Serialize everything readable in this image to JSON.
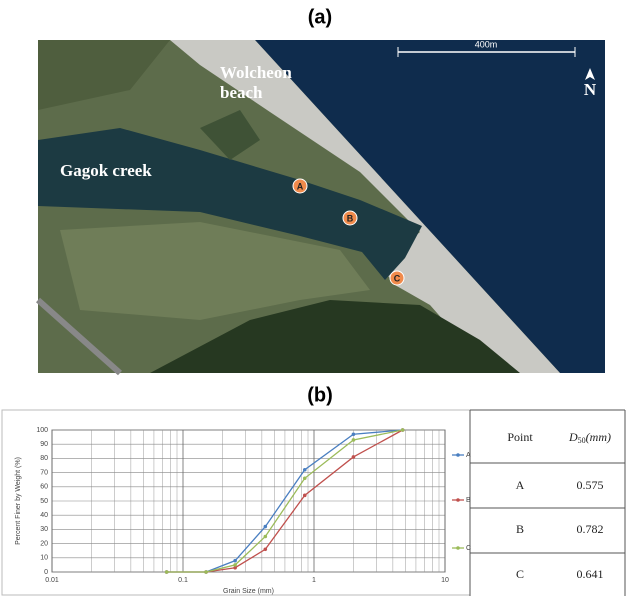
{
  "figure": {
    "panel_a_label": "(a)",
    "panel_b_label": "(b)"
  },
  "map": {
    "beach": [
      "Wolcheon",
      "beach"
    ],
    "creek": "Gagok creek",
    "scale_bar": "400m",
    "north": "N",
    "points": [
      "A",
      "B",
      "C"
    ]
  },
  "chart_data": {
    "type": "line",
    "x_label": "Grain Size (mm)",
    "y_label": "Percent Finer by Weight (%)",
    "x": [
      0.075,
      0.15,
      0.25,
      0.425,
      0.85,
      2,
      4.75
    ],
    "series": [
      {
        "name": "A",
        "color": "#4a7fc1",
        "values": [
          0,
          0,
          8,
          32,
          72,
          97,
          100
        ]
      },
      {
        "name": "B",
        "color": "#c0504d",
        "values": [
          0,
          0,
          3,
          16,
          54,
          81,
          100
        ]
      },
      {
        "name": "C",
        "color": "#9bbb59",
        "values": [
          0,
          0,
          5,
          25,
          66,
          93,
          100
        ]
      }
    ],
    "xlim": [
      0.01,
      10
    ],
    "ylim": [
      0,
      100
    ],
    "xticks": [
      0.01,
      0.1,
      1,
      10
    ],
    "yticks": [
      0,
      10,
      20,
      30,
      40,
      50,
      60,
      70,
      80,
      90,
      100
    ],
    "log_x": true,
    "grid": true,
    "legend": "right"
  },
  "table": {
    "header": {
      "point": "Point",
      "d": "D",
      "subscript": "50",
      "unit": "(mm)"
    },
    "rows": [
      [
        "A",
        "0.575"
      ],
      [
        "B",
        "0.782"
      ],
      [
        "C",
        "0.641"
      ]
    ]
  }
}
